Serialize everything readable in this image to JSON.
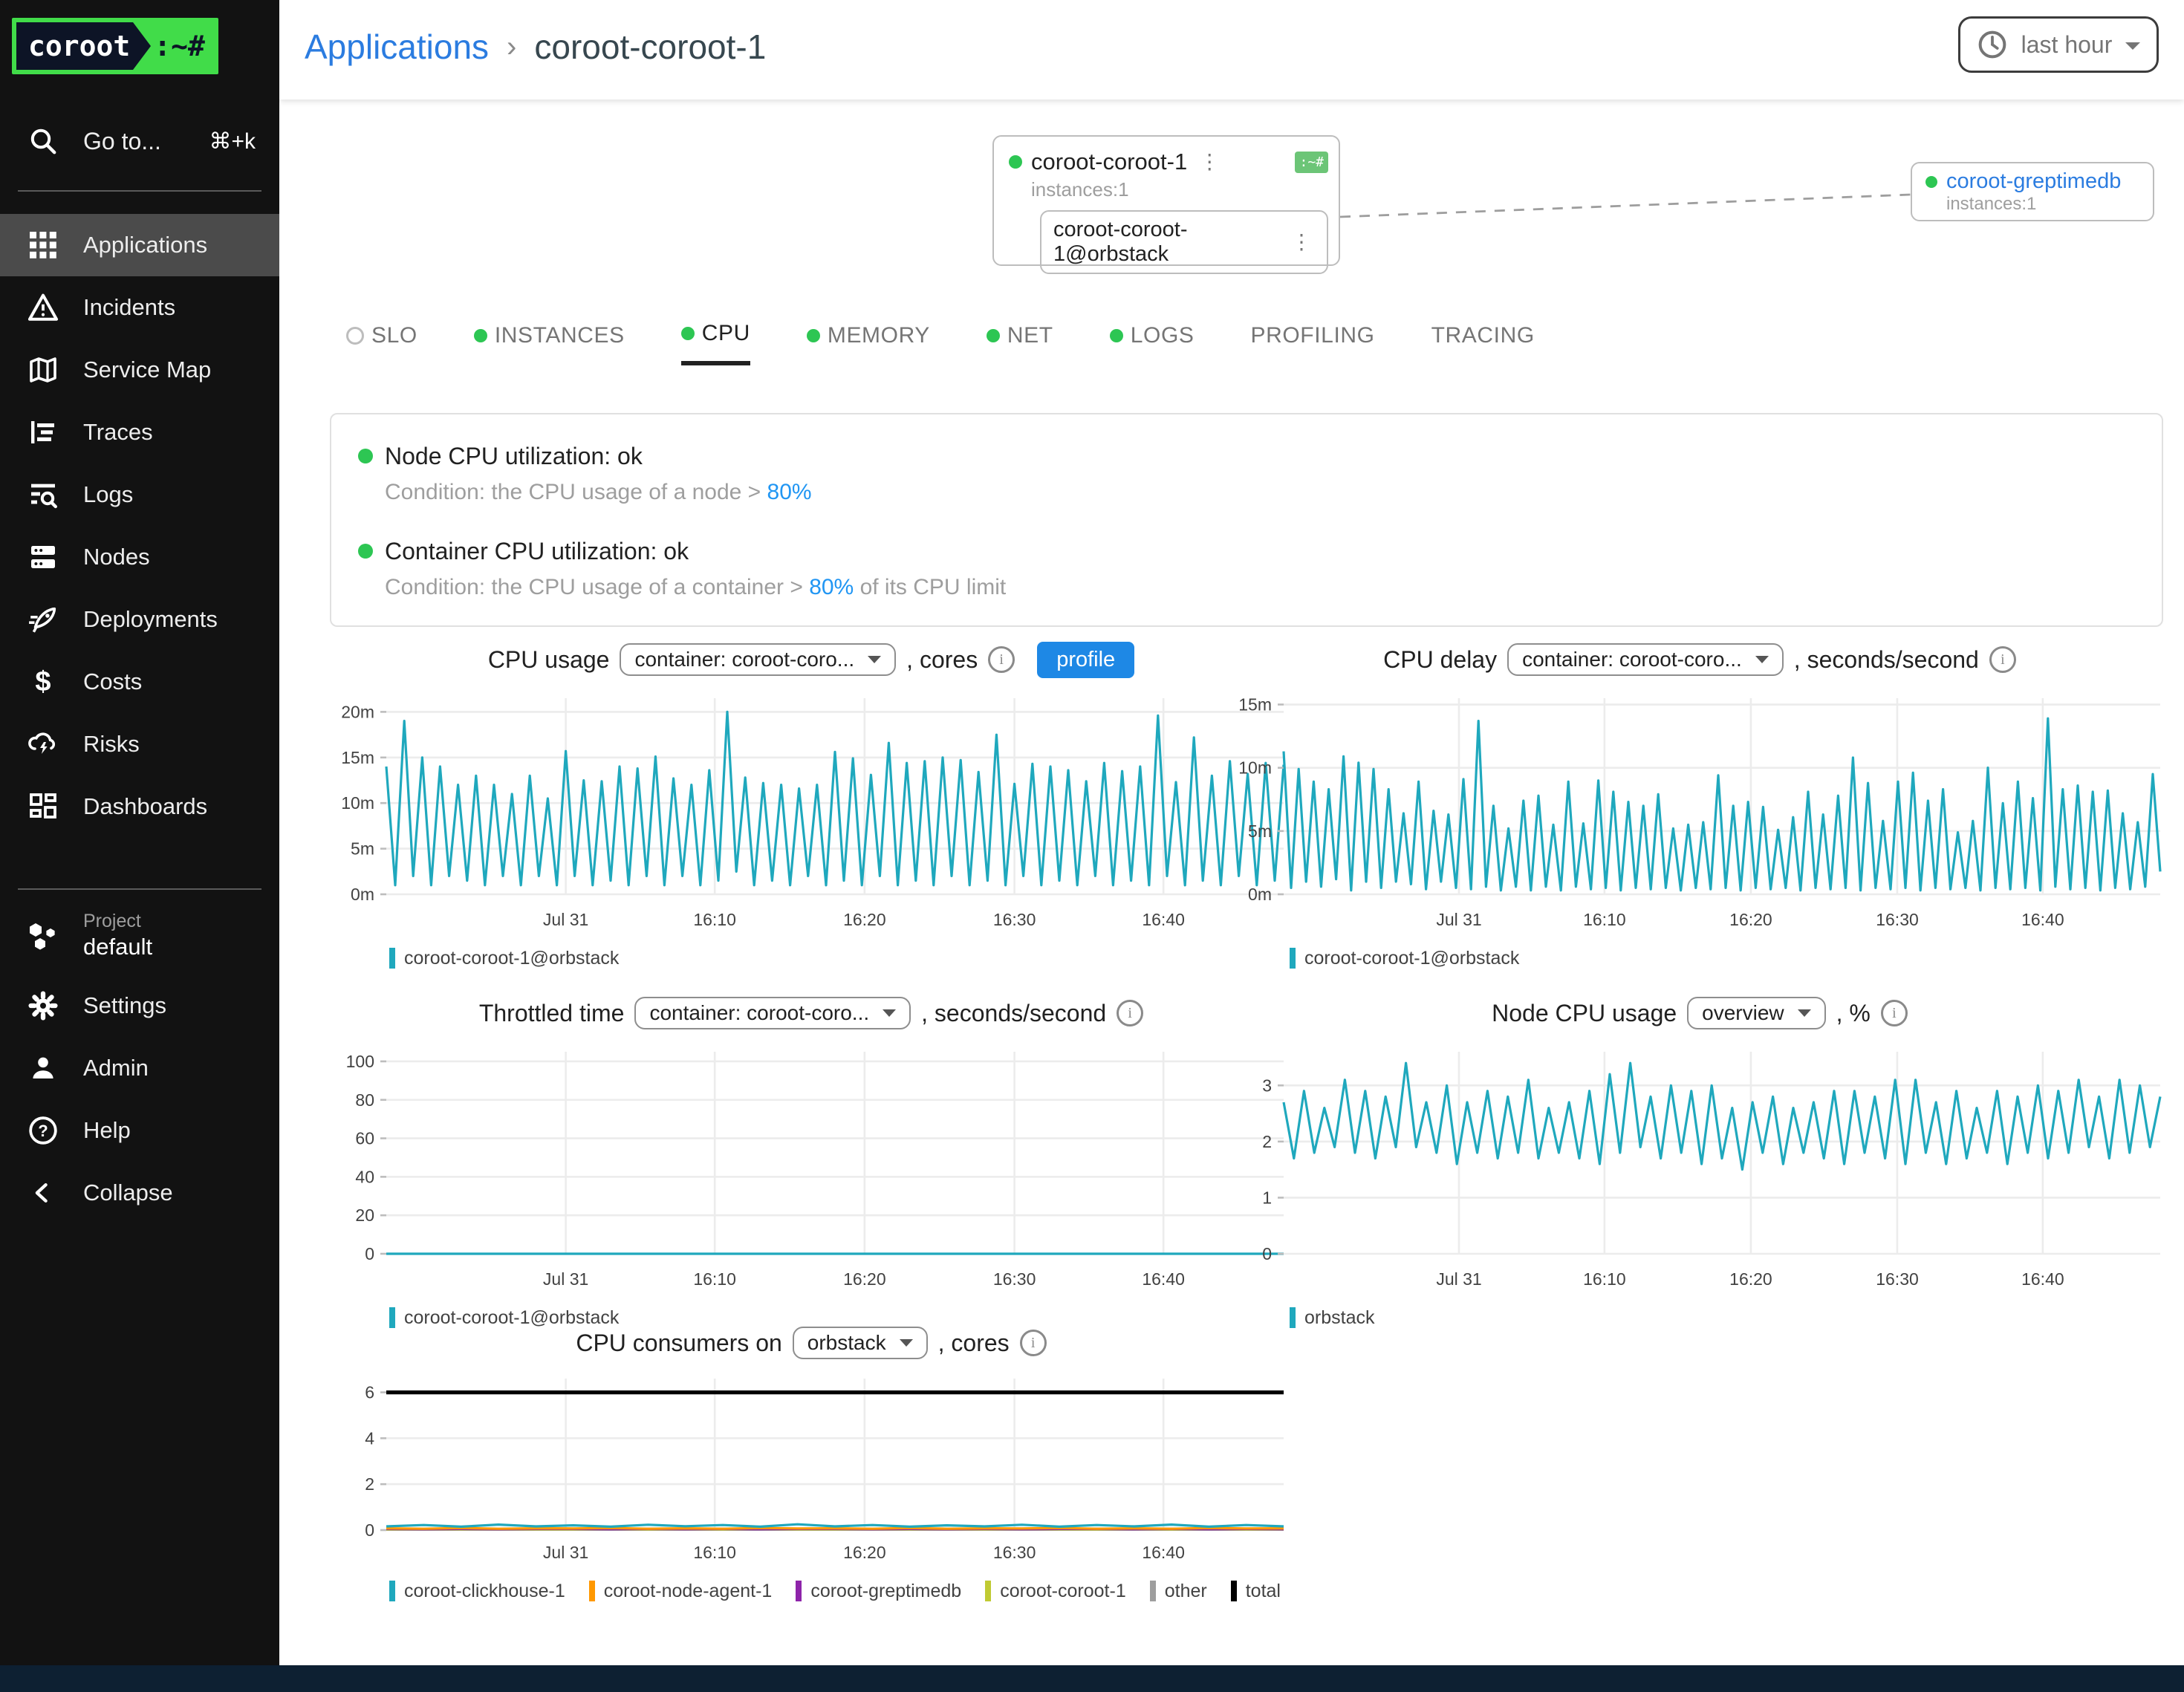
{
  "colors": {
    "teal": "#1fa8bd",
    "orange": "#ff9800",
    "purple": "#8e24aa",
    "yellow_green": "#c0ca33",
    "gray": "#9e9e9e",
    "black": "#000000",
    "ok_green": "#2dc653",
    "link_blue": "#2b7ce0",
    "accent_blue": "#1e88e5",
    "threshold_blue": "#2196f3"
  },
  "sidebar": {
    "logo": {
      "text": "coroot",
      "suffix": ":~#"
    },
    "search": {
      "label": "Go to...",
      "shortcut": "⌘+k"
    },
    "items": [
      {
        "label": "Applications",
        "icon": "apps-grid-icon",
        "active": true
      },
      {
        "label": "Incidents",
        "icon": "warning-triangle-icon"
      },
      {
        "label": "Service Map",
        "icon": "map-icon"
      },
      {
        "label": "Traces",
        "icon": "traces-icon"
      },
      {
        "label": "Logs",
        "icon": "logs-search-icon"
      },
      {
        "label": "Nodes",
        "icon": "server-icon"
      },
      {
        "label": "Deployments",
        "icon": "rocket-icon"
      },
      {
        "label": "Costs",
        "icon": "dollar-icon"
      },
      {
        "label": "Risks",
        "icon": "storm-cloud-icon"
      },
      {
        "label": "Dashboards",
        "icon": "dashboard-grid-icon"
      }
    ],
    "project": {
      "label": "Project",
      "name": "default"
    },
    "bottom": [
      {
        "label": "Settings",
        "icon": "gear-icon"
      },
      {
        "label": "Admin",
        "icon": "person-icon"
      },
      {
        "label": "Help",
        "icon": "help-circle-icon"
      },
      {
        "label": "Collapse",
        "icon": "chevron-left-icon"
      }
    ]
  },
  "header": {
    "breadcrumb": {
      "root": "Applications",
      "separator": "›",
      "current": "coroot-coroot-1"
    },
    "time_range": "last hour"
  },
  "service_map": {
    "main_card": {
      "name": "coroot-coroot-1",
      "instances": "instances:1",
      "badge": ":~#",
      "kebab": "⋮",
      "instance": "coroot-coroot-1@orbstack"
    },
    "linked_card": {
      "name": "coroot-greptimedb",
      "instances": "instances:1"
    }
  },
  "tabs": [
    {
      "label": "SLO",
      "dot": "unknown"
    },
    {
      "label": "INSTANCES",
      "dot": "ok"
    },
    {
      "label": "CPU",
      "dot": "ok",
      "active": true
    },
    {
      "label": "MEMORY",
      "dot": "ok"
    },
    {
      "label": "NET",
      "dot": "ok"
    },
    {
      "label": "LOGS",
      "dot": "ok"
    },
    {
      "label": "PROFILING",
      "dot": "none"
    },
    {
      "label": "TRACING",
      "dot": "none"
    }
  ],
  "checks": [
    {
      "title": "Node CPU utilization: ok",
      "condition_prefix": "Condition: the CPU usage of a node > ",
      "threshold": "80%",
      "condition_suffix": ""
    },
    {
      "title": "Container CPU utilization: ok",
      "condition_prefix": "Condition: the CPU usage of a container > ",
      "threshold": "80%",
      "condition_suffix": " of its CPU limit"
    }
  ],
  "chart_data": [
    {
      "id": "cpu-usage",
      "type": "line",
      "title": "CPU usage",
      "selector": "container: coroot-coro...",
      "unit": ", cores",
      "info": true,
      "profile_button": "profile",
      "x_ticks": [
        "Jul 31",
        "16:10",
        "16:20",
        "16:30",
        "16:40"
      ],
      "y_tick_labels": [
        "0m",
        "5m",
        "10m",
        "15m",
        "20m"
      ],
      "y_tick_values": [
        0,
        5,
        10,
        15,
        20
      ],
      "ylim": [
        0,
        21.5
      ],
      "series": [
        {
          "name": "coroot-coroot-1@orbstack",
          "color": "#1fa8bd",
          "values": [
            14,
            1,
            19,
            2,
            15,
            1,
            14,
            2,
            12,
            1.5,
            13,
            1,
            12,
            2,
            11,
            1,
            13,
            2,
            10.5,
            1,
            15.7,
            2,
            12.5,
            1,
            12.4,
            1.5,
            14,
            1,
            13.8,
            2,
            15.1,
            1,
            12.7,
            2,
            12,
            1,
            13.6,
            1.5,
            20,
            2.5,
            12.8,
            1,
            12.2,
            1.5,
            12,
            1,
            11.6,
            2,
            12,
            1,
            15.6,
            1.5,
            14.9,
            1,
            13.1,
            2,
            16.6,
            1,
            14.4,
            1.5,
            14.6,
            1,
            15,
            2,
            14.7,
            1,
            13.4,
            1.5,
            17.5,
            1,
            12.1,
            2,
            14.3,
            1,
            14,
            1.5,
            13.6,
            1,
            12.4,
            2,
            14.4,
            1,
            13.5,
            1.5,
            14,
            1,
            19.6,
            2,
            12.3,
            1,
            17.2,
            1.5,
            13,
            1,
            14.6,
            2,
            13.2,
            1,
            14.4,
            1.5,
            14.2
          ]
        }
      ]
    },
    {
      "id": "cpu-delay",
      "type": "line",
      "title": "CPU delay",
      "selector": "container: coroot-coro...",
      "unit": ", seconds/second",
      "info": true,
      "x_ticks": [
        "Jul 31",
        "16:10",
        "16:20",
        "16:30",
        "16:40"
      ],
      "y_tick_labels": [
        "0m",
        "5m",
        "10m",
        "15m"
      ],
      "y_tick_values": [
        0,
        5,
        10,
        15
      ],
      "ylim": [
        0,
        15.5
      ],
      "series": [
        {
          "name": "coroot-coroot-1@orbstack",
          "color": "#1fa8bd",
          "values": [
            11.3,
            0.5,
            9.9,
            1,
            8.9,
            0.6,
            8.3,
            1.2,
            10.9,
            0.3,
            10.4,
            1,
            9.9,
            0.5,
            8.3,
            1,
            6.4,
            0.8,
            8.9,
            0.4,
            6.6,
            1,
            6.3,
            0.5,
            9.1,
            0.4,
            13.7,
            0.6,
            7,
            0.3,
            5.2,
            0.6,
            7.4,
            0.3,
            7.8,
            0.6,
            5.5,
            0.3,
            8.9,
            0.6,
            5.6,
            0.4,
            9,
            0.5,
            8.1,
            0.3,
            7.3,
            0.5,
            7,
            0.4,
            7.9,
            0.5,
            5.2,
            0.3,
            5.5,
            0.5,
            5.7,
            0.4,
            9.4,
            0.5,
            7,
            0.3,
            7.3,
            0.5,
            6.9,
            0.4,
            5.1,
            0.5,
            6.1,
            0.3,
            8.1,
            0.5,
            6.3,
            0.4,
            7.8,
            0.5,
            10.8,
            0.3,
            8.8,
            0.5,
            5.8,
            0.4,
            8.9,
            0.5,
            9.6,
            0.3,
            7.4,
            0.5,
            8.3,
            0.4,
            4.9,
            0.5,
            5.8,
            0.3,
            10,
            0.5,
            7.2,
            0.4,
            8.9,
            0.5,
            7.6,
            0.3,
            13.9,
            0.6,
            8.3,
            0.4,
            8.6,
            0.5,
            8.1,
            0.3,
            8.2,
            0.5,
            6.4,
            0.4,
            5.7,
            0.6,
            9.5,
            1.8
          ]
        }
      ]
    },
    {
      "id": "throttled-time",
      "type": "line",
      "title": "Throttled time",
      "selector": "container: coroot-coro...",
      "unit": ", seconds/second",
      "info": true,
      "x_ticks": [
        "Jul 31",
        "16:10",
        "16:20",
        "16:30",
        "16:40"
      ],
      "y_tick_labels": [
        "0",
        "20",
        "40",
        "60",
        "80",
        "100"
      ],
      "y_tick_values": [
        0,
        20,
        40,
        60,
        80,
        100
      ],
      "ylim": [
        0,
        105
      ],
      "series": [
        {
          "name": "coroot-coroot-1@orbstack",
          "color": "#1fa8bd",
          "values": [
            0,
            0,
            0,
            0,
            0,
            0,
            0,
            0,
            0,
            0,
            0,
            0,
            0,
            0,
            0,
            0,
            0,
            0,
            0,
            0,
            0
          ]
        }
      ]
    },
    {
      "id": "node-cpu-usage",
      "type": "line",
      "title": "Node CPU usage",
      "selector": "overview",
      "unit": ", %",
      "info": true,
      "x_ticks": [
        "Jul 31",
        "16:10",
        "16:20",
        "16:30",
        "16:40"
      ],
      "y_tick_labels": [
        "0",
        "1",
        "2",
        "3"
      ],
      "y_tick_values": [
        0,
        1,
        2,
        3
      ],
      "ylim": [
        0,
        3.6
      ],
      "series": [
        {
          "name": "orbstack",
          "color": "#1fa8bd",
          "values": [
            2.7,
            1.7,
            2.9,
            1.8,
            2.6,
            1.9,
            3.1,
            1.8,
            2.9,
            1.7,
            2.8,
            1.9,
            3.4,
            1.9,
            2.7,
            1.8,
            3,
            1.6,
            2.7,
            1.8,
            2.9,
            1.7,
            2.8,
            1.8,
            3.1,
            1.7,
            2.6,
            1.8,
            2.7,
            1.7,
            2.9,
            1.6,
            3.2,
            1.8,
            3.4,
            1.9,
            2.8,
            1.7,
            3,
            1.8,
            2.9,
            1.6,
            3,
            1.7,
            2.6,
            1.5,
            2.7,
            1.8,
            2.8,
            1.6,
            2.6,
            1.8,
            2.7,
            1.7,
            2.9,
            1.6,
            2.9,
            1.8,
            2.8,
            1.7,
            3.1,
            1.6,
            3.1,
            1.8,
            2.7,
            1.6,
            2.9,
            1.7,
            2.6,
            1.8,
            2.9,
            1.6,
            2.8,
            1.8,
            3,
            1.7,
            2.9,
            1.8,
            3.1,
            1.9,
            2.8,
            1.7,
            3.1,
            1.8,
            3,
            1.9,
            2.8
          ]
        }
      ]
    },
    {
      "id": "cpu-consumers",
      "type": "line",
      "title": "CPU consumers on",
      "selector": "orbstack",
      "unit": ", cores",
      "info": true,
      "x_ticks": [
        "Jul 31",
        "16:10",
        "16:20",
        "16:30",
        "16:40"
      ],
      "y_tick_labels": [
        "0",
        "2",
        "4",
        "6"
      ],
      "y_tick_values": [
        0,
        2,
        4,
        6
      ],
      "ylim": [
        0,
        6.6
      ],
      "series": [
        {
          "name": "coroot-clickhouse-1",
          "color": "#1fa8bd",
          "values": [
            0.16,
            0.22,
            0.15,
            0.24,
            0.16,
            0.21,
            0.15,
            0.23,
            0.17,
            0.22,
            0.15,
            0.25,
            0.16,
            0.22,
            0.15,
            0.21,
            0.16,
            0.23,
            0.15,
            0.22,
            0.16,
            0.24,
            0.15,
            0.22,
            0.16
          ]
        },
        {
          "name": "coroot-node-agent-1",
          "color": "#ff9800",
          "values": [
            0.08,
            0.06,
            0.09,
            0.06,
            0.08,
            0.07,
            0.09,
            0.06,
            0.08,
            0.06,
            0.09,
            0.07,
            0.08,
            0.06,
            0.09,
            0.06,
            0.08,
            0.07,
            0.09,
            0.06,
            0.08,
            0.06,
            0.09,
            0.07,
            0.08
          ]
        },
        {
          "name": "coroot-greptimedb",
          "color": "#8e24aa",
          "values": [
            0.05,
            0.04,
            0.05,
            0.04,
            0.05,
            0.05,
            0.04,
            0.05,
            0.04,
            0.05,
            0.04,
            0.05,
            0.05,
            0.04,
            0.05,
            0.04,
            0.05,
            0.04,
            0.05,
            0.05,
            0.04,
            0.05,
            0.04,
            0.05,
            0.04
          ]
        },
        {
          "name": "coroot-coroot-1",
          "color": "#c0ca33",
          "values": [
            0.03,
            0.04,
            0.03,
            0.04,
            0.03,
            0.03,
            0.04,
            0.03,
            0.04,
            0.03,
            0.04,
            0.03,
            0.03,
            0.04,
            0.03,
            0.04,
            0.03,
            0.04,
            0.03,
            0.03,
            0.04,
            0.03,
            0.04,
            0.03,
            0.03
          ]
        },
        {
          "name": "other",
          "color": "#9e9e9e",
          "values": [
            0.02,
            0.02,
            0.02,
            0.02,
            0.02,
            0.02,
            0.02,
            0.02,
            0.02,
            0.02,
            0.02,
            0.02,
            0.02,
            0.02,
            0.02,
            0.02,
            0.02,
            0.02,
            0.02,
            0.02,
            0.02,
            0.02,
            0.02,
            0.02,
            0.02
          ]
        },
        {
          "name": "total",
          "color": "#000000",
          "width": 2.6,
          "values": [
            6,
            6,
            6,
            6,
            6,
            6,
            6,
            6,
            6,
            6,
            6,
            6,
            6,
            6,
            6,
            6,
            6,
            6,
            6,
            6,
            6
          ]
        }
      ]
    }
  ]
}
